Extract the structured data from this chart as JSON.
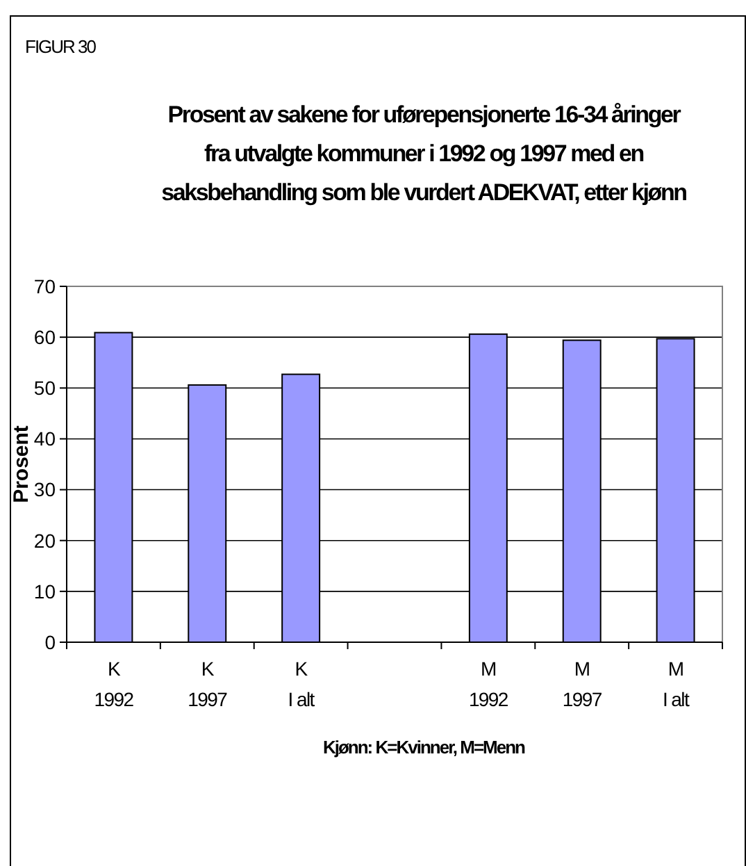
{
  "chart_data": {
    "type": "bar",
    "title": "Prosent av sakene for uførepensjonerte 16-34 åringer fra utvalgte kommuner i 1992 og 1997 med en saksbehandling som ble vurdert ADEKVAT, etter kjønn",
    "xlabel": "Kjønn: K=Kvinner, M=Menn",
    "ylabel": "Prosent",
    "annotations": [
      "FIGUR 30"
    ],
    "categories": [
      "K\n1992",
      "K\n1997",
      "K\nI alt",
      null,
      "M\n1992",
      "M\n1997",
      "M\nI alt"
    ],
    "values": [
      60.9,
      50.6,
      52.7,
      null,
      60.6,
      59.4,
      59.7
    ],
    "color": "#9999ff",
    "ylim": [
      0,
      70
    ],
    "yticks": [
      0,
      10,
      20,
      30,
      40,
      50,
      60,
      70
    ],
    "grid": "y"
  }
}
